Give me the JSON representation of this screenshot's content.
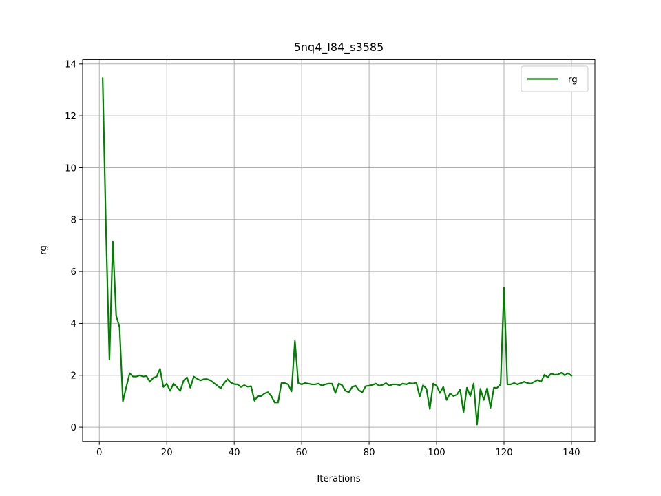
{
  "chart_data": {
    "type": "line",
    "title": "5nq4_l84_s3585",
    "xlabel": "Iterations",
    "ylabel": "rg",
    "xlim": [
      -4.95,
      146.95
    ],
    "ylim": [
      -0.55,
      14.17
    ],
    "xticks": [
      0,
      20,
      40,
      60,
      80,
      100,
      120,
      140
    ],
    "yticks": [
      0,
      2,
      4,
      6,
      8,
      10,
      12,
      14
    ],
    "grid": true,
    "legend_position": "top-right",
    "series": [
      {
        "name": "rg",
        "color": "#008000",
        "x": [
          1,
          2,
          3,
          4,
          5,
          6,
          7,
          8,
          9,
          10,
          11,
          12,
          13,
          14,
          15,
          16,
          17,
          18,
          19,
          20,
          21,
          22,
          23,
          24,
          25,
          26,
          27,
          28,
          29,
          30,
          31,
          32,
          33,
          34,
          35,
          36,
          37,
          38,
          39,
          40,
          41,
          42,
          43,
          44,
          45,
          46,
          47,
          48,
          49,
          50,
          51,
          52,
          53,
          54,
          55,
          56,
          57,
          58,
          59,
          60,
          61,
          62,
          63,
          64,
          65,
          66,
          67,
          68,
          69,
          70,
          71,
          72,
          73,
          74,
          75,
          76,
          77,
          78,
          79,
          80,
          81,
          82,
          83,
          84,
          85,
          86,
          87,
          88,
          89,
          90,
          91,
          92,
          93,
          94,
          95,
          96,
          97,
          98,
          99,
          100,
          101,
          102,
          103,
          104,
          105,
          106,
          107,
          108,
          109,
          110,
          111,
          112,
          113,
          114,
          115,
          116,
          117,
          118,
          119,
          120,
          121,
          122,
          123,
          124,
          125,
          126,
          127,
          128,
          129,
          130,
          131,
          132,
          133,
          134,
          135,
          136,
          137,
          138,
          139,
          140
        ],
        "y": [
          13.45,
          7.5,
          2.6,
          7.15,
          4.3,
          3.85,
          1.0,
          1.55,
          2.08,
          1.95,
          1.95,
          2.0,
          1.95,
          1.97,
          1.75,
          1.9,
          1.95,
          2.25,
          1.55,
          1.68,
          1.4,
          1.68,
          1.55,
          1.4,
          1.8,
          1.92,
          1.52,
          1.95,
          1.87,
          1.8,
          1.85,
          1.85,
          1.8,
          1.7,
          1.6,
          1.5,
          1.7,
          1.85,
          1.72,
          1.66,
          1.65,
          1.55,
          1.62,
          1.56,
          1.58,
          1.02,
          1.2,
          1.2,
          1.3,
          1.35,
          1.2,
          0.95,
          0.95,
          1.7,
          1.7,
          1.65,
          1.38,
          3.32,
          1.7,
          1.65,
          1.7,
          1.68,
          1.65,
          1.65,
          1.68,
          1.6,
          1.65,
          1.68,
          1.68,
          1.32,
          1.68,
          1.62,
          1.4,
          1.35,
          1.55,
          1.6,
          1.42,
          1.35,
          1.58,
          1.6,
          1.63,
          1.68,
          1.6,
          1.63,
          1.7,
          1.6,
          1.65,
          1.65,
          1.62,
          1.68,
          1.65,
          1.7,
          1.68,
          1.72,
          1.18,
          1.62,
          1.48,
          0.7,
          1.68,
          1.6,
          1.32,
          1.55,
          1.05,
          1.3,
          1.2,
          1.25,
          1.45,
          0.58,
          1.52,
          1.2,
          1.68,
          0.1,
          1.48,
          1.05,
          1.5,
          0.75,
          1.52,
          1.52,
          1.65,
          5.37,
          1.65,
          1.65,
          1.7,
          1.65,
          1.7,
          1.75,
          1.7,
          1.68,
          1.75,
          1.82,
          1.75,
          2.02,
          1.92,
          2.07,
          2.02,
          2.03,
          2.1,
          2.0,
          2.08,
          1.98
        ]
      }
    ]
  }
}
